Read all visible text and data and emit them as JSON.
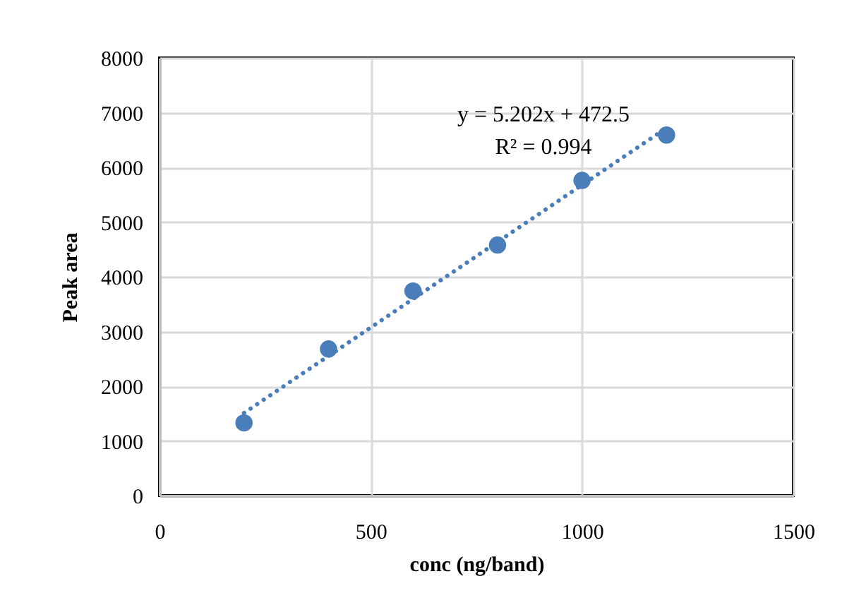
{
  "chart_data": {
    "type": "scatter",
    "xlabel": "conc (ng/band)",
    "ylabel": "Peak area",
    "x": [
      200,
      400,
      600,
      800,
      1000,
      1200
    ],
    "series": [
      {
        "color": "#4a7ebb",
        "values": [
          1330,
          2680,
          3740,
          4580,
          5760,
          6590
        ],
        "marker": "circle"
      },
      {
        "type": "line",
        "color": "#4a7ebb",
        "x": [
          200,
          1200
        ],
        "values": [
          1510,
          6720
        ],
        "line_style": "dotted",
        "marker": "none"
      }
    ],
    "annotations": [
      "y = 5.202x + 472.5",
      "R² = 0.994"
    ],
    "xlim": [
      0,
      1500
    ],
    "xticks": [
      0,
      500,
      1000,
      1500
    ],
    "ylim": [
      0,
      8000
    ],
    "yticks": [
      0,
      1000,
      2000,
      3000,
      4000,
      5000,
      6000,
      7000,
      8000
    ],
    "grid": true
  }
}
